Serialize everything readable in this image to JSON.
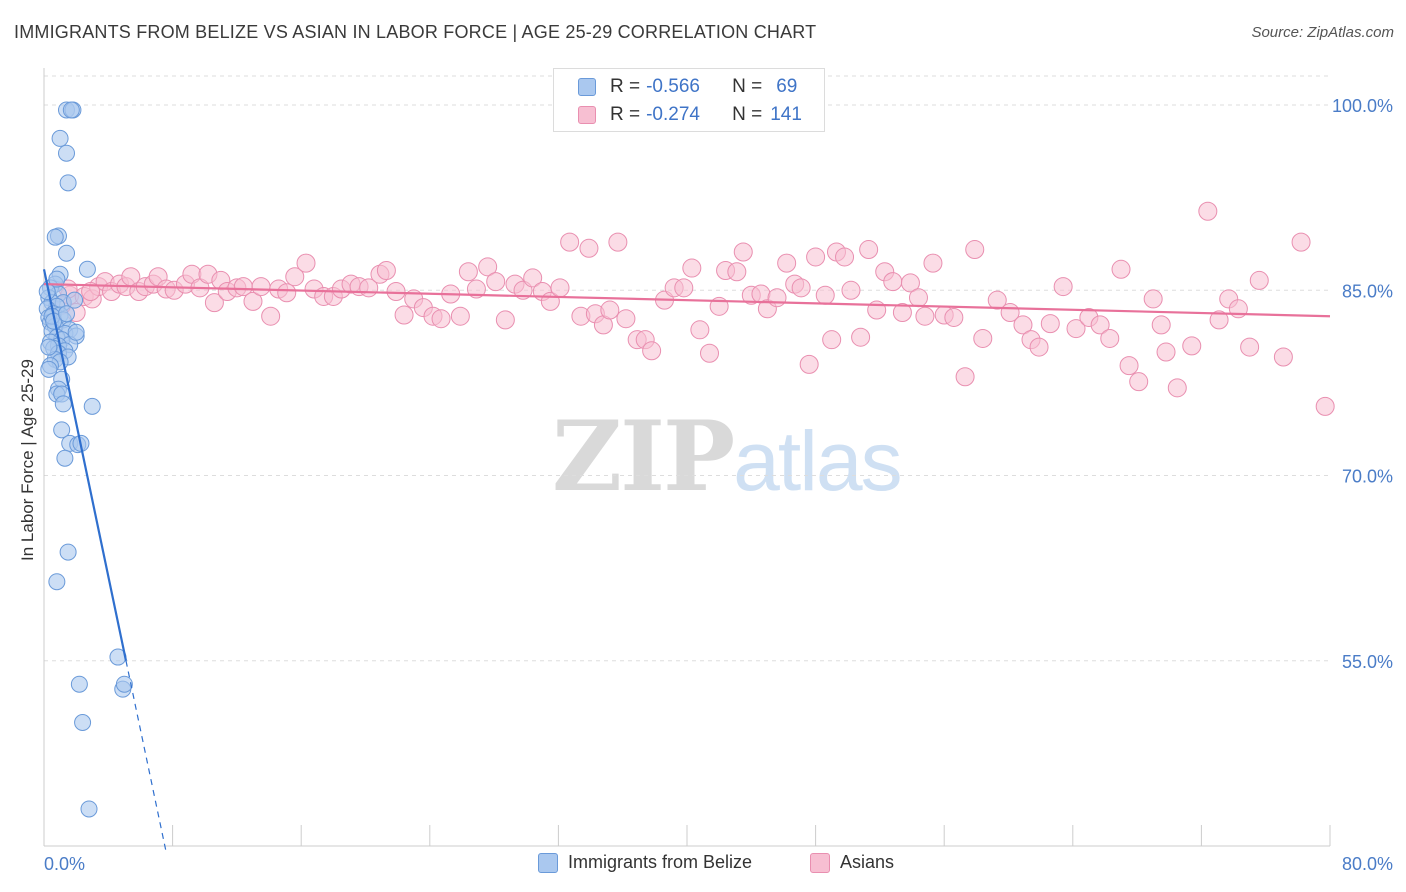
{
  "title": "IMMIGRANTS FROM BELIZE VS ASIAN IN LABOR FORCE | AGE 25-29 CORRELATION CHART",
  "source": "Source: ZipAtlas.com",
  "watermark": {
    "zip": "ZIP",
    "atlas": "atlas"
  },
  "legend": {
    "rows": [
      {
        "r_label": "R =",
        "r_value": "-0.566",
        "n_label": "N =",
        "n_value": "69"
      },
      {
        "r_label": "R =",
        "r_value": "-0.274",
        "n_label": "N =",
        "n_value": "141"
      }
    ]
  },
  "colors": {
    "blue_fill": "#aac8ef",
    "blue_line": "#2f6fce",
    "pink_fill": "#f7bfd2",
    "pink_line": "#e8719a",
    "tick_text": "#4a7cc7",
    "grid": "#dddddd"
  },
  "chart_data": {
    "type": "scatter",
    "title": "IMMIGRANTS FROM BELIZE VS ASIAN IN LABOR FORCE | AGE 25-29 CORRELATION CHART",
    "xlabel": "",
    "ylabel": "In Labor Force | Age 25-29",
    "xlim": [
      0,
      80
    ],
    "ylim": [
      40,
      103
    ],
    "x_tick_labels": [
      {
        "value": 0,
        "label": "0.0%"
      },
      {
        "value": 80,
        "label": "80.0%"
      }
    ],
    "y_tick_labels": [
      {
        "value": 100,
        "label": "100.0%"
      },
      {
        "value": 85,
        "label": "85.0%"
      },
      {
        "value": 70,
        "label": "70.0%"
      },
      {
        "value": 55,
        "label": "55.0%"
      }
    ],
    "series": [
      {
        "name": "Immigrants from Belize",
        "color": "#aac8ef",
        "stroke": "#6a9ad9",
        "r": -0.566,
        "n": 69,
        "trend": {
          "x0": 0.0,
          "y0": 86.7,
          "x1": 5.1,
          "y1": 55.0,
          "dash_to_x": 7.6,
          "dash_to_y": 39.5
        },
        "points": [
          [
            1.4,
            99.6
          ],
          [
            1.8,
            99.6
          ],
          [
            1.7,
            99.6
          ],
          [
            1.0,
            97.3
          ],
          [
            1.4,
            96.1
          ],
          [
            1.5,
            93.7
          ],
          [
            0.9,
            89.4
          ],
          [
            0.7,
            89.3
          ],
          [
            1.4,
            88.0
          ],
          [
            2.7,
            86.7
          ],
          [
            1.0,
            86.3
          ],
          [
            0.7,
            85.5
          ],
          [
            0.4,
            85.2
          ],
          [
            0.9,
            84.7
          ],
          [
            0.3,
            84.4
          ],
          [
            0.5,
            84.0
          ],
          [
            1.2,
            84.0
          ],
          [
            0.8,
            83.7
          ],
          [
            0.2,
            83.5
          ],
          [
            0.6,
            83.1
          ],
          [
            1.0,
            83.0
          ],
          [
            0.3,
            82.8
          ],
          [
            1.2,
            82.6
          ],
          [
            0.4,
            82.4
          ],
          [
            0.7,
            82.1
          ],
          [
            1.6,
            81.8
          ],
          [
            0.5,
            81.7
          ],
          [
            1.3,
            81.5
          ],
          [
            2.0,
            81.3
          ],
          [
            0.8,
            81.2
          ],
          [
            1.1,
            81.0
          ],
          [
            0.4,
            80.8
          ],
          [
            1.6,
            80.6
          ],
          [
            0.9,
            80.5
          ],
          [
            0.6,
            80.3
          ],
          [
            1.3,
            80.1
          ],
          [
            0.9,
            79.9
          ],
          [
            1.5,
            79.6
          ],
          [
            0.7,
            79.4
          ],
          [
            1.0,
            79.2
          ],
          [
            0.4,
            78.9
          ],
          [
            0.3,
            78.6
          ],
          [
            1.1,
            77.8
          ],
          [
            0.9,
            77.0
          ],
          [
            0.8,
            76.6
          ],
          [
            1.1,
            76.6
          ],
          [
            1.2,
            75.8
          ],
          [
            3.0,
            75.6
          ],
          [
            1.1,
            73.7
          ],
          [
            1.6,
            72.6
          ],
          [
            2.1,
            72.5
          ],
          [
            2.3,
            72.6
          ],
          [
            1.3,
            71.4
          ],
          [
            1.5,
            63.8
          ],
          [
            0.8,
            61.4
          ],
          [
            4.6,
            55.3
          ],
          [
            2.2,
            53.1
          ],
          [
            4.9,
            52.7
          ],
          [
            5.0,
            53.1
          ],
          [
            2.4,
            50.0
          ],
          [
            2.8,
            43.0
          ],
          [
            0.5,
            82.9
          ],
          [
            0.2,
            84.9
          ],
          [
            1.9,
            84.2
          ],
          [
            0.6,
            82.5
          ],
          [
            1.4,
            83.1
          ],
          [
            0.8,
            85.9
          ],
          [
            0.3,
            80.4
          ],
          [
            2.0,
            81.6
          ]
        ]
      },
      {
        "name": "Asians",
        "color": "#f7bfd2",
        "stroke": "#e98fb0",
        "r": -0.274,
        "n": 141,
        "trend": {
          "x0": 0.0,
          "y0": 85.5,
          "x1": 80.0,
          "y1": 82.9
        },
        "points": [
          [
            1.6,
            84.6
          ],
          [
            2.0,
            83.2
          ],
          [
            1.1,
            83.8
          ],
          [
            2.5,
            84.5
          ],
          [
            3.0,
            84.3
          ],
          [
            3.4,
            85.3
          ],
          [
            3.8,
            85.7
          ],
          [
            4.2,
            84.9
          ],
          [
            4.7,
            85.5
          ],
          [
            5.1,
            85.3
          ],
          [
            5.4,
            86.1
          ],
          [
            5.9,
            84.9
          ],
          [
            6.3,
            85.3
          ],
          [
            6.8,
            85.5
          ],
          [
            7.1,
            86.1
          ],
          [
            7.6,
            85.1
          ],
          [
            8.1,
            85.0
          ],
          [
            8.8,
            85.5
          ],
          [
            9.2,
            86.3
          ],
          [
            9.7,
            85.2
          ],
          [
            10.2,
            86.3
          ],
          [
            10.6,
            84.0
          ],
          [
            11.0,
            85.8
          ],
          [
            11.4,
            84.9
          ],
          [
            12.0,
            85.2
          ],
          [
            12.4,
            85.3
          ],
          [
            13.0,
            84.1
          ],
          [
            13.5,
            85.3
          ],
          [
            14.1,
            82.9
          ],
          [
            14.6,
            85.1
          ],
          [
            15.1,
            84.8
          ],
          [
            15.6,
            86.1
          ],
          [
            16.3,
            87.2
          ],
          [
            16.8,
            85.1
          ],
          [
            17.4,
            84.5
          ],
          [
            18.0,
            84.5
          ],
          [
            18.5,
            85.1
          ],
          [
            19.1,
            85.5
          ],
          [
            19.6,
            85.3
          ],
          [
            20.2,
            85.2
          ],
          [
            20.9,
            86.3
          ],
          [
            21.3,
            86.6
          ],
          [
            21.9,
            84.9
          ],
          [
            22.4,
            83.0
          ],
          [
            23.0,
            84.3
          ],
          [
            23.6,
            83.6
          ],
          [
            24.2,
            82.9
          ],
          [
            24.7,
            82.7
          ],
          [
            25.3,
            84.7
          ],
          [
            25.9,
            82.9
          ],
          [
            26.4,
            86.5
          ],
          [
            26.9,
            85.1
          ],
          [
            27.6,
            86.9
          ],
          [
            28.1,
            85.7
          ],
          [
            28.7,
            82.6
          ],
          [
            29.3,
            85.5
          ],
          [
            29.8,
            85.0
          ],
          [
            30.4,
            86.0
          ],
          [
            31.0,
            84.9
          ],
          [
            31.5,
            84.1
          ],
          [
            32.1,
            85.2
          ],
          [
            32.7,
            88.9
          ],
          [
            33.4,
            82.9
          ],
          [
            33.9,
            88.4
          ],
          [
            34.3,
            83.1
          ],
          [
            34.8,
            82.2
          ],
          [
            35.2,
            83.4
          ],
          [
            35.7,
            88.9
          ],
          [
            36.2,
            82.7
          ],
          [
            36.9,
            81.0
          ],
          [
            37.4,
            81.0
          ],
          [
            37.8,
            80.1
          ],
          [
            38.6,
            84.2
          ],
          [
            39.2,
            85.2
          ],
          [
            39.8,
            85.2
          ],
          [
            40.3,
            86.8
          ],
          [
            40.8,
            81.8
          ],
          [
            41.4,
            79.9
          ],
          [
            42.0,
            83.7
          ],
          [
            42.4,
            86.6
          ],
          [
            43.1,
            86.5
          ],
          [
            43.5,
            88.1
          ],
          [
            44.0,
            84.6
          ],
          [
            44.6,
            84.7
          ],
          [
            45.0,
            83.5
          ],
          [
            45.6,
            84.4
          ],
          [
            46.2,
            87.2
          ],
          [
            46.7,
            85.5
          ],
          [
            47.1,
            85.2
          ],
          [
            47.6,
            79.0
          ],
          [
            48.0,
            87.7
          ],
          [
            48.6,
            84.6
          ],
          [
            49.0,
            81.0
          ],
          [
            49.3,
            88.1
          ],
          [
            49.8,
            87.7
          ],
          [
            50.2,
            85.0
          ],
          [
            50.8,
            81.2
          ],
          [
            51.3,
            88.3
          ],
          [
            51.8,
            83.4
          ],
          [
            52.3,
            86.5
          ],
          [
            52.8,
            85.7
          ],
          [
            53.4,
            83.2
          ],
          [
            53.9,
            85.6
          ],
          [
            54.4,
            84.4
          ],
          [
            54.8,
            82.9
          ],
          [
            55.3,
            87.2
          ],
          [
            56.0,
            83.0
          ],
          [
            56.6,
            82.8
          ],
          [
            57.3,
            78.0
          ],
          [
            57.9,
            88.3
          ],
          [
            58.4,
            81.1
          ],
          [
            59.3,
            84.2
          ],
          [
            60.1,
            83.2
          ],
          [
            60.9,
            82.2
          ],
          [
            61.4,
            81.0
          ],
          [
            61.9,
            80.4
          ],
          [
            62.6,
            82.3
          ],
          [
            63.4,
            85.3
          ],
          [
            64.2,
            81.9
          ],
          [
            65.0,
            82.8
          ],
          [
            65.7,
            82.2
          ],
          [
            66.3,
            81.1
          ],
          [
            67.0,
            86.7
          ],
          [
            67.5,
            78.9
          ],
          [
            68.1,
            77.6
          ],
          [
            69.0,
            84.3
          ],
          [
            69.5,
            82.2
          ],
          [
            69.8,
            80.0
          ],
          [
            70.5,
            77.1
          ],
          [
            71.4,
            80.5
          ],
          [
            72.4,
            91.4
          ],
          [
            73.1,
            82.6
          ],
          [
            73.7,
            84.3
          ],
          [
            74.3,
            83.5
          ],
          [
            75.0,
            80.4
          ],
          [
            75.6,
            85.8
          ],
          [
            77.1,
            79.6
          ],
          [
            78.2,
            88.9
          ],
          [
            79.7,
            75.6
          ],
          [
            1.5,
            85.1
          ],
          [
            2.9,
            84.9
          ]
        ]
      }
    ]
  },
  "bottom_legend": {
    "items": [
      {
        "label": "Immigrants from Belize"
      },
      {
        "label": "Asians"
      }
    ]
  }
}
